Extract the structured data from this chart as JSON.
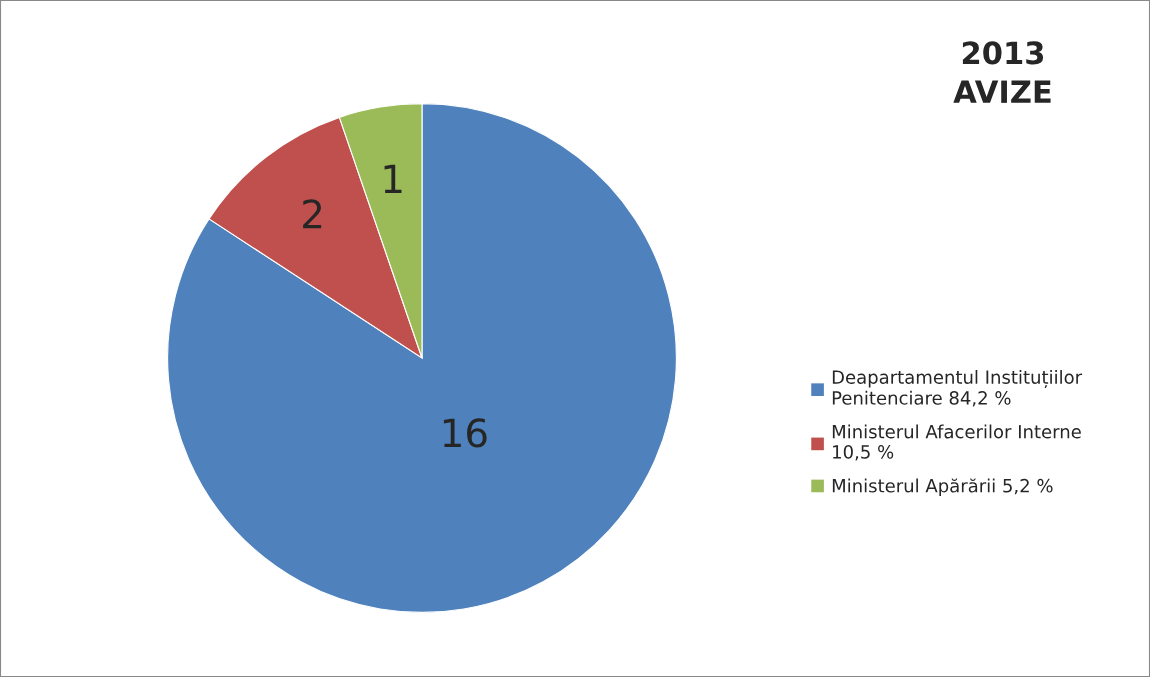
{
  "chart_data": {
    "type": "pie",
    "title": "2013\nAVIZE",
    "categories": [
      "Deapartamentul Instituțiilor\nPenitenciare 84,2 %",
      "Ministerul Afacerilor Interne\n10,5 %",
      "Ministerul Apărării 5,2 %"
    ],
    "values": [
      16,
      2,
      1
    ],
    "colors": [
      "#4f81bd",
      "#c0504d",
      "#9bbb59"
    ],
    "data_labels": true,
    "legend": "right"
  }
}
